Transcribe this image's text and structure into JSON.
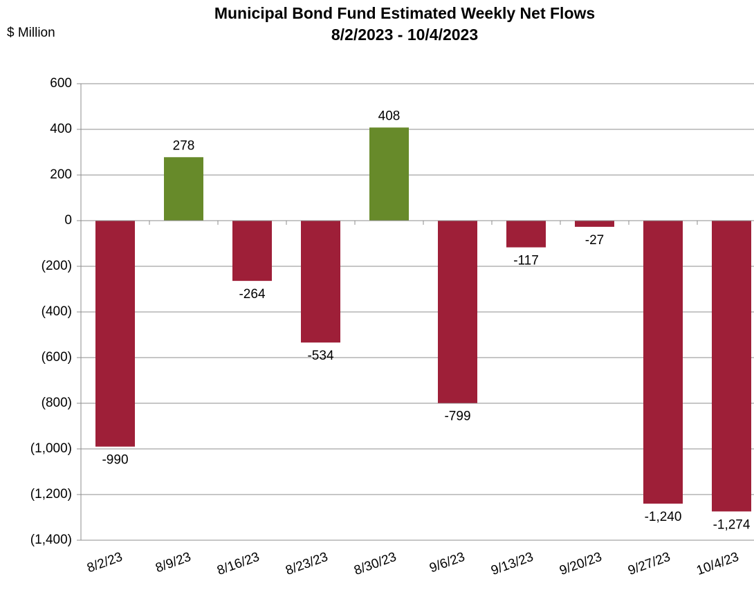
{
  "chart_data": {
    "type": "bar",
    "title": "Municipal Bond Fund Estimated Weekly Net Flows",
    "subtitle": "8/2/2023 - 10/4/2023",
    "y_label": "$ Million",
    "categories": [
      "8/2/23",
      "8/9/23",
      "8/16/23",
      "8/23/23",
      "8/30/23",
      "9/6/23",
      "9/13/23",
      "9/20/23",
      "9/27/23",
      "10/4/23"
    ],
    "values": [
      -990,
      278,
      -264,
      -534,
      408,
      -799,
      -117,
      -27,
      -1240,
      -1274
    ],
    "value_labels": [
      "-990",
      "278",
      "-264",
      "-534",
      "408",
      "-799",
      "-117",
      "-27",
      "-1,240",
      "-1,274"
    ],
    "positive_color": "#678a2a",
    "negative_color": "#9e1f38",
    "negative_tick_color": "#ff0000",
    "ylim": [
      -1400,
      600
    ],
    "yticks": [
      600,
      400,
      200,
      0,
      {
        "value": -200,
        "label": "(200)"
      },
      {
        "value": -400,
        "label": "(400)"
      },
      {
        "value": -600,
        "label": "(600)"
      },
      {
        "value": -800,
        "label": "(800)"
      },
      {
        "value": -1000,
        "label": "(1,000)"
      },
      {
        "value": -1200,
        "label": "(1,200)"
      },
      {
        "value": -1400,
        "label": "(1,400)"
      }
    ],
    "grid": true
  }
}
